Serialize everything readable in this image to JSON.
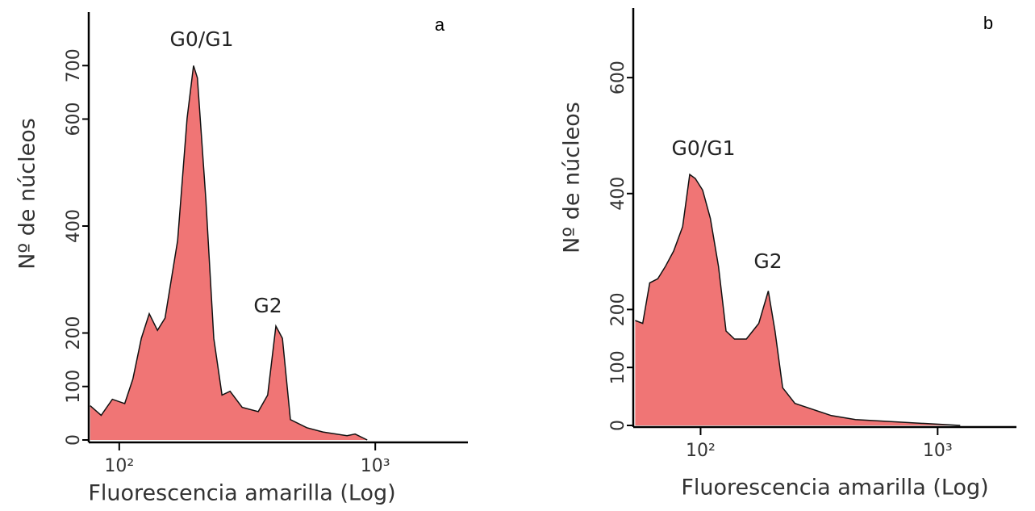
{
  "chart_data": [
    {
      "type": "area",
      "panel": "a",
      "xlabel": "Fluorescencia amarilla (Log)",
      "ylabel": "Nº de núcleos",
      "xscale": "log",
      "color": "#f07575",
      "xlim": [
        76,
        2300
      ],
      "xticks": [
        {
          "value": 100,
          "label": "10²"
        },
        {
          "value": 1000,
          "label": "10³"
        }
      ],
      "ylim": [
        0,
        800
      ],
      "yticks": [
        0,
        100,
        200,
        400,
        600,
        700
      ],
      "annotations": [
        "G0/G1",
        "G2"
      ],
      "x": [
        77,
        85,
        94,
        105,
        113,
        122,
        131,
        141,
        151,
        169,
        184,
        195,
        202,
        218,
        234,
        252,
        271,
        302,
        349,
        380,
        409,
        434,
        466,
        540,
        624,
        776,
        834,
        930
      ],
      "values": [
        64,
        46,
        76,
        68,
        114,
        190,
        236,
        205,
        228,
        373,
        601,
        700,
        677,
        449,
        190,
        84,
        91,
        61,
        53,
        84,
        213,
        190,
        38,
        23,
        15,
        8,
        11,
        0
      ]
    },
    {
      "type": "area",
      "panel": "b",
      "xlabel": "Fluorescencia amarilla (Log)",
      "ylabel": "Nº de núcleos",
      "xscale": "log",
      "color": "#f07575",
      "xlim": [
        52,
        2150
      ],
      "xticks": [
        {
          "value": 100,
          "label": "10²"
        },
        {
          "value": 1000,
          "label": "10³"
        }
      ],
      "ylim": [
        0,
        720
      ],
      "yticks": [
        0,
        100,
        200,
        400,
        600
      ],
      "annotations": [
        "G0/G1",
        "G2"
      ],
      "x": [
        53,
        57,
        61,
        66,
        71,
        77,
        84,
        90,
        95,
        102,
        110,
        119,
        128,
        139,
        156,
        176,
        193,
        206,
        222,
        250,
        281,
        356,
        450,
        615,
        910,
        1245
      ],
      "values": [
        181,
        176,
        246,
        253,
        274,
        301,
        343,
        433,
        426,
        406,
        357,
        274,
        163,
        149,
        149,
        176,
        232,
        163,
        65,
        38,
        31,
        17,
        10,
        7,
        3,
        0
      ]
    }
  ]
}
